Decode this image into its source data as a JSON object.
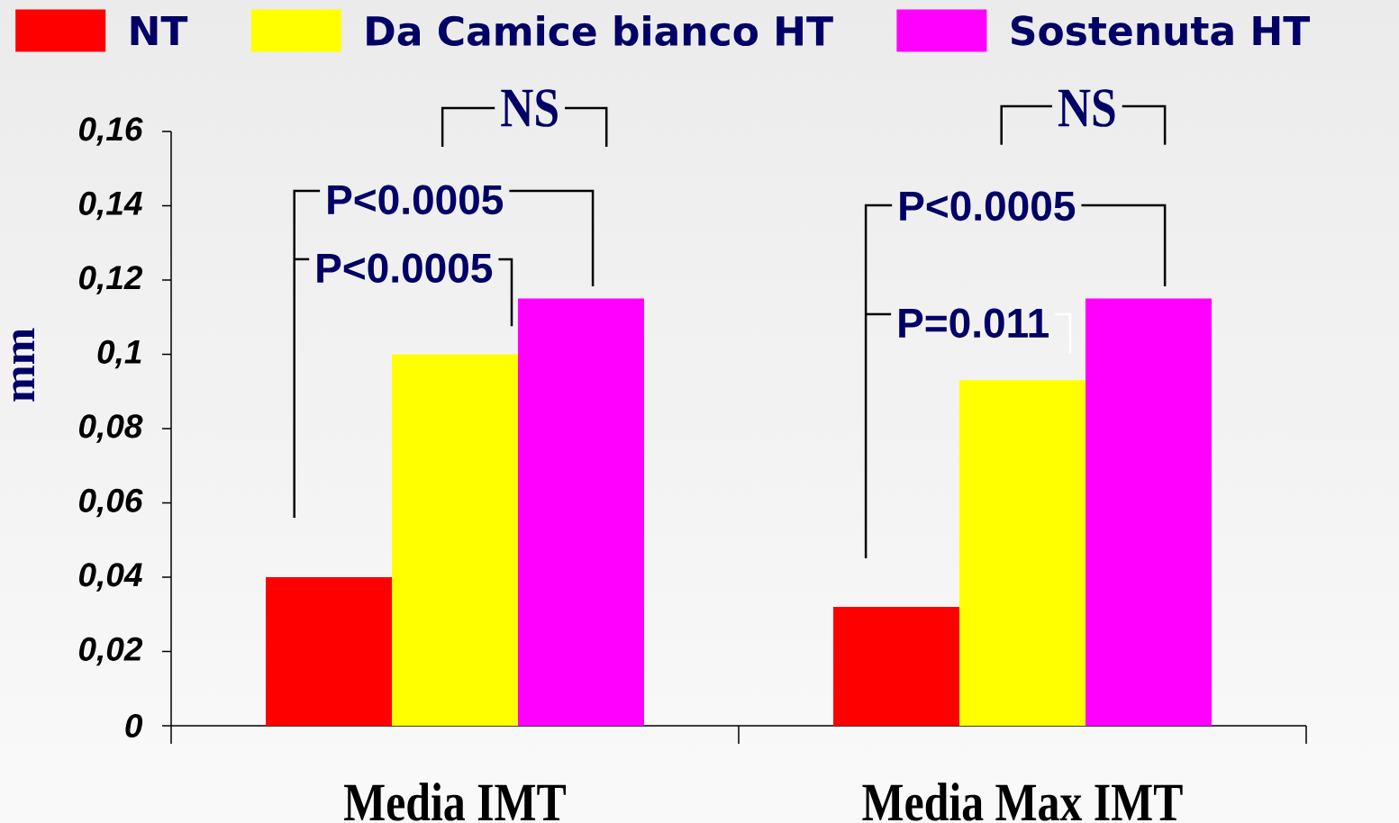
{
  "chart_data": {
    "type": "bar",
    "categories": [
      "Media IMT",
      "Media Max IMT"
    ],
    "series": [
      {
        "name": "NT",
        "color": "#ff0000",
        "values": [
          0.04,
          0.032
        ]
      },
      {
        "name": "Da Camice bianco HT",
        "color": "#ffff00",
        "values": [
          0.1,
          0.093
        ]
      },
      {
        "name": "Sostenuta HT",
        "color": "#ff00ff",
        "values": [
          0.115,
          0.115
        ]
      }
    ],
    "ylabel": "mm",
    "ylim": [
      0,
      0.16
    ],
    "yticks": [
      0,
      {
        "value": 0.02,
        "label": "0,02"
      },
      {
        "value": 0.04,
        "label": "0,04"
      },
      {
        "value": 0.06,
        "label": "0,06"
      },
      {
        "value": 0.08,
        "label": "0,08"
      },
      {
        "value": 0.1,
        "label": "0,1"
      },
      {
        "value": 0.12,
        "label": "0,12"
      },
      {
        "value": 0.14,
        "label": "0,14"
      },
      {
        "value": 0.16,
        "label": "0,16"
      }
    ],
    "legend": "top",
    "annotations": [
      "NS",
      "P<0.0005",
      "P<0.0005",
      "NS",
      "P<0.0005",
      "P=0.011"
    ]
  }
}
